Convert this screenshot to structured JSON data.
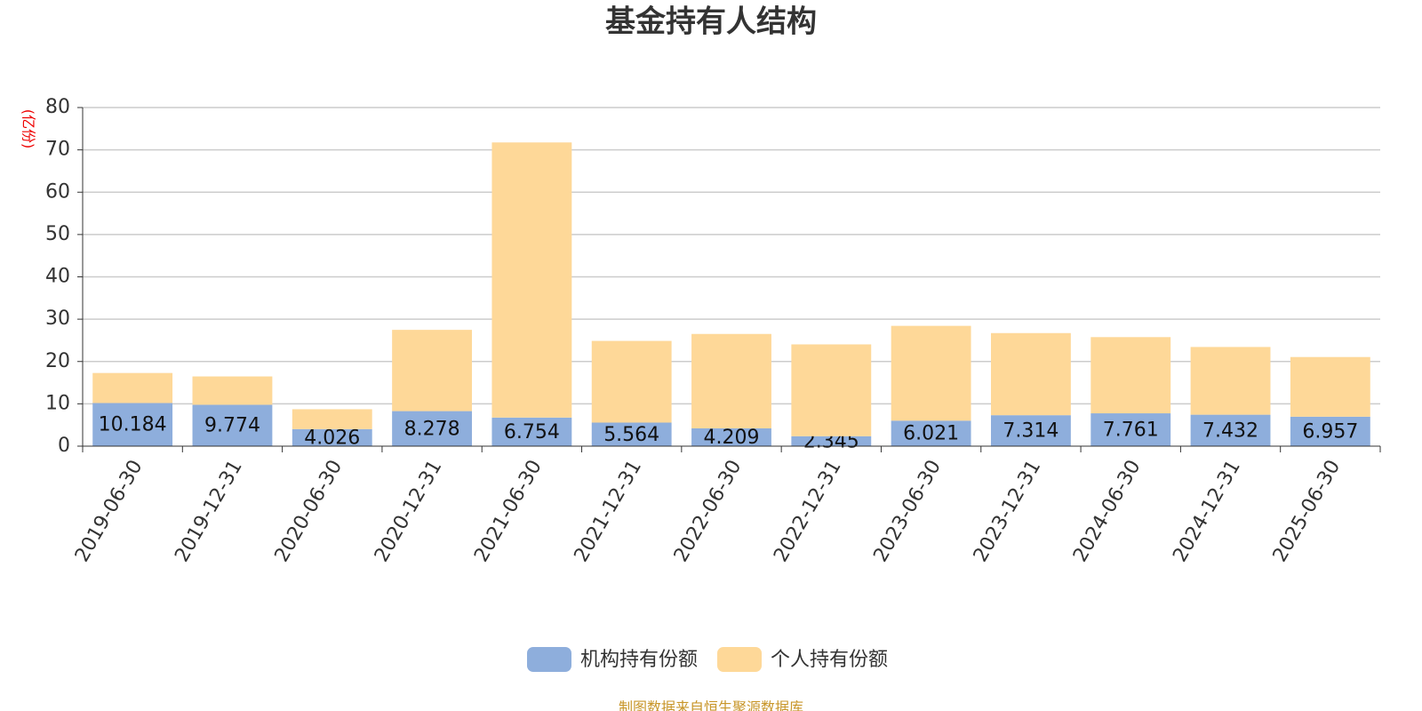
{
  "chart_data": {
    "type": "stacked_bar",
    "title": "基金持有人结构",
    "y_label": "(亿份)",
    "source": "制图数据来自恒生聚源数据库",
    "categories": [
      "2019-06-30",
      "2019-12-31",
      "2020-06-30",
      "2020-12-31",
      "2021-06-30",
      "2021-12-31",
      "2022-06-30",
      "2022-12-31",
      "2023-06-30",
      "2023-12-31",
      "2024-06-30",
      "2024-12-31",
      "2025-06-30"
    ],
    "series": [
      {
        "name": "机构持有份额",
        "color": "#8eaedc",
        "values": [
          10.184,
          9.774,
          4.026,
          8.278,
          6.754,
          5.564,
          4.209,
          2.345,
          6.021,
          7.314,
          7.761,
          7.432,
          6.957
        ]
      },
      {
        "name": "个人持有份额",
        "color": "#fed898",
        "values": [
          7.1,
          6.7,
          4.7,
          19.2,
          65.0,
          19.3,
          22.3,
          21.7,
          22.4,
          19.4,
          18.0,
          16.0,
          14.1
        ]
      }
    ],
    "ylim": [
      0,
      80
    ],
    "yticks": [
      0,
      10,
      20,
      30,
      40,
      50,
      60,
      70,
      80
    ],
    "grid": true
  }
}
